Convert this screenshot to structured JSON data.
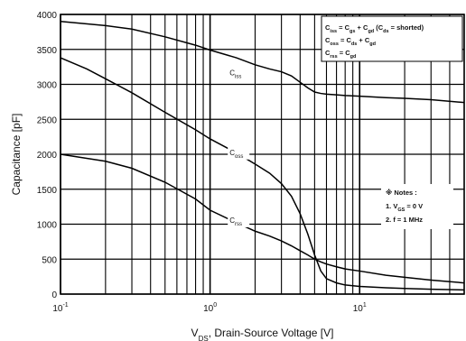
{
  "chart_data": {
    "type": "line",
    "title": "",
    "xlabel": "V_DS, Drain-Source Voltage [V]",
    "ylabel": "Capacitance [pF]",
    "xscale": "log",
    "xlim": [
      0.1,
      50
    ],
    "ylim": [
      0,
      4000
    ],
    "grid": true,
    "x_ticks": [
      {
        "value": 0.1,
        "base": "10",
        "exp": "-1"
      },
      {
        "value": 1,
        "base": "10",
        "exp": "0"
      },
      {
        "value": 10,
        "base": "10",
        "exp": "1"
      }
    ],
    "y_ticks": [
      0,
      500,
      1000,
      1500,
      2000,
      2500,
      3000,
      3500,
      4000
    ],
    "series": [
      {
        "name": "C_iss",
        "label_main": "C",
        "label_sub": "iss",
        "label_at": [
          1.35,
          3130
        ],
        "x": [
          0.1,
          0.2,
          0.3,
          0.5,
          0.8,
          1.0,
          1.5,
          2.0,
          2.5,
          3.0,
          3.5,
          4.0,
          4.5,
          5.0,
          5.5,
          6.0,
          7.0,
          8.0,
          10.0,
          15.0,
          20.0,
          30.0,
          50.0
        ],
        "values": [
          3900,
          3840,
          3790,
          3680,
          3560,
          3490,
          3380,
          3280,
          3220,
          3180,
          3120,
          3030,
          2950,
          2890,
          2870,
          2860,
          2850,
          2840,
          2830,
          2810,
          2800,
          2780,
          2740
        ]
      },
      {
        "name": "C_oss",
        "label_main": "C",
        "label_sub": "oss",
        "label_at": [
          1.35,
          1990
        ],
        "x": [
          0.1,
          0.15,
          0.2,
          0.3,
          0.5,
          0.8,
          1.0,
          1.5,
          2.0,
          2.5,
          3.0,
          3.5,
          4.0,
          4.5,
          5.0,
          5.5,
          6.0,
          7.0,
          8.0,
          10.0,
          15.0,
          20.0,
          30.0,
          50.0
        ],
        "values": [
          3380,
          3220,
          3080,
          2880,
          2600,
          2350,
          2220,
          2020,
          1860,
          1730,
          1580,
          1400,
          1150,
          860,
          560,
          330,
          220,
          160,
          130,
          110,
          90,
          80,
          70,
          60
        ]
      },
      {
        "name": "C_rss",
        "label_main": "C",
        "label_sub": "rss",
        "label_at": [
          1.35,
          1020
        ],
        "x": [
          0.1,
          0.2,
          0.3,
          0.5,
          0.8,
          1.0,
          1.5,
          2.0,
          2.5,
          3.0,
          3.5,
          4.0,
          4.5,
          5.0,
          5.5,
          6.0,
          7.0,
          8.0,
          10.0,
          15.0,
          20.0,
          30.0,
          50.0
        ],
        "values": [
          2000,
          1900,
          1800,
          1600,
          1360,
          1200,
          1020,
          900,
          830,
          760,
          690,
          620,
          560,
          500,
          460,
          430,
          390,
          360,
          330,
          270,
          240,
          200,
          160
        ]
      }
    ],
    "legend_box": {
      "position": "top-right",
      "lines": [
        [
          [
            "C"
          ],
          [
            "iss",
            "sub"
          ],
          [
            " = C"
          ],
          [
            "gs",
            "sub"
          ],
          [
            " + C"
          ],
          [
            "gd",
            "sub"
          ],
          [
            " (C"
          ],
          [
            "ds",
            "sub"
          ],
          [
            " = shorted)"
          ]
        ],
        [
          [
            "C"
          ],
          [
            "oss",
            "sub"
          ],
          [
            " = C"
          ],
          [
            "ds",
            "sub"
          ],
          [
            " + C"
          ],
          [
            "gd",
            "sub"
          ]
        ],
        [
          [
            "C"
          ],
          [
            "rss",
            "sub"
          ],
          [
            " = C"
          ],
          [
            "gd",
            "sub"
          ]
        ]
      ]
    },
    "notes_box": {
      "position": "right",
      "lines": [
        [
          [
            "※ Notes :"
          ]
        ],
        [
          [
            "1. V"
          ],
          [
            "GS",
            "sub"
          ],
          [
            " = 0 V"
          ]
        ],
        [
          [
            "2. f = 1 MHz"
          ]
        ]
      ]
    }
  }
}
